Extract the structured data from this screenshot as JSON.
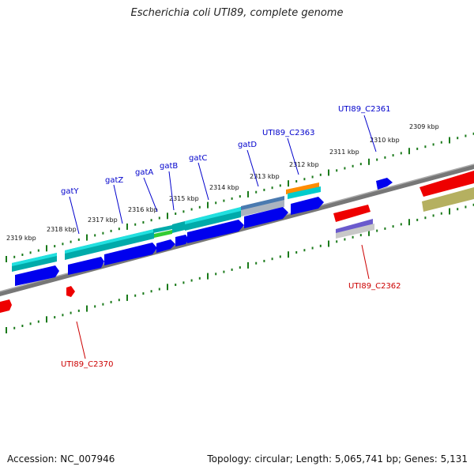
{
  "title": "Escherichia coli UTI89, complete genome",
  "footer": {
    "accession": "Accession: NC_007946",
    "summary": "Topology: circular; Length: 5,065,741 bp; Genes: 5,131"
  },
  "kbp_labels": [
    "2309 kbp",
    "2310 kbp",
    "2311 kbp",
    "2312 kbp",
    "2313 kbp",
    "2314 kbp",
    "2315 kbp",
    "2316 kbp",
    "2317 kbp",
    "2318 kbp",
    "2319 kbp"
  ],
  "gene_labels": {
    "gatY": "gatY",
    "gatZ": "gatZ",
    "gatA": "gatA",
    "gatB": "gatB",
    "gatC": "gatC",
    "gatD": "gatD",
    "c2363": "UTI89_C2363",
    "c2361": "UTI89_C2361",
    "c2362": "UTI89_C2362",
    "c2370": "UTI89_C2370"
  },
  "colors": {
    "top_label": "#0000cc",
    "bottom_label": "#cc0000",
    "tick": "#1a7a1a",
    "backbone": "#808080",
    "cds": "#0000ee",
    "rna": "#00cccc",
    "red": "#ee0000",
    "olive": "#b5b060",
    "orange": "#ff8c00",
    "green": "#33cc33",
    "slate": "#4a7ab0",
    "violet": "#6a5acd"
  }
}
